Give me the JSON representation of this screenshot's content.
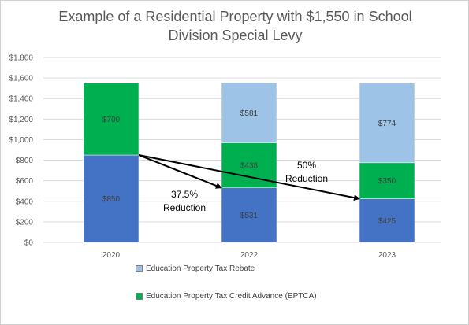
{
  "chart_data": {
    "type": "bar",
    "stacked": true,
    "title_lines": [
      "Example of a Residential Property with $1,550 in School",
      "Division Special Levy"
    ],
    "categories": [
      "2020",
      "2022",
      "2023"
    ],
    "ylim": [
      0,
      1800
    ],
    "yticks": [
      0,
      200,
      400,
      600,
      800,
      1000,
      1200,
      1400,
      1600,
      1800
    ],
    "ytick_labels": [
      "$0",
      "$200",
      "$400",
      "$600",
      "$800",
      "$1,000",
      "$1,200",
      "$1,400",
      "$1,600",
      "$1,800"
    ],
    "grid": true,
    "series": [
      {
        "values": [
          850,
          531,
          425
        ],
        "labels": [
          "$850",
          "$531",
          "$425"
        ],
        "color": "#4472c4"
      },
      {
        "name": "Education Property Tax Credit Advance (EPTCA)",
        "values": [
          700,
          438,
          350
        ],
        "labels": [
          "$700",
          "$438",
          "$350"
        ],
        "color": "#00b050"
      },
      {
        "name": "Education Property Tax Rebate",
        "values": [
          0,
          581,
          774
        ],
        "labels": [
          "",
          "$581",
          "$774"
        ],
        "color": "#9dc3e6"
      }
    ],
    "legend": [
      "Education Property Tax Rebate",
      "Education Property Tax Credit Advance (EPTCA)"
    ],
    "annotations": [
      {
        "from": {
          "x": "2020",
          "y": 850
        },
        "to": {
          "x": "2022",
          "y": 531
        },
        "lines": [
          "37.5%",
          "Reduction"
        ]
      },
      {
        "from": {
          "x": "2020",
          "y": 850
        },
        "to": {
          "x": "2023",
          "y": 425
        },
        "lines": [
          "50%",
          "Reduction"
        ]
      }
    ]
  },
  "colors": {
    "grid": "#d9d9d9",
    "axis_text": "#595959",
    "bar_label": "#404040",
    "arrow": "#000000"
  }
}
